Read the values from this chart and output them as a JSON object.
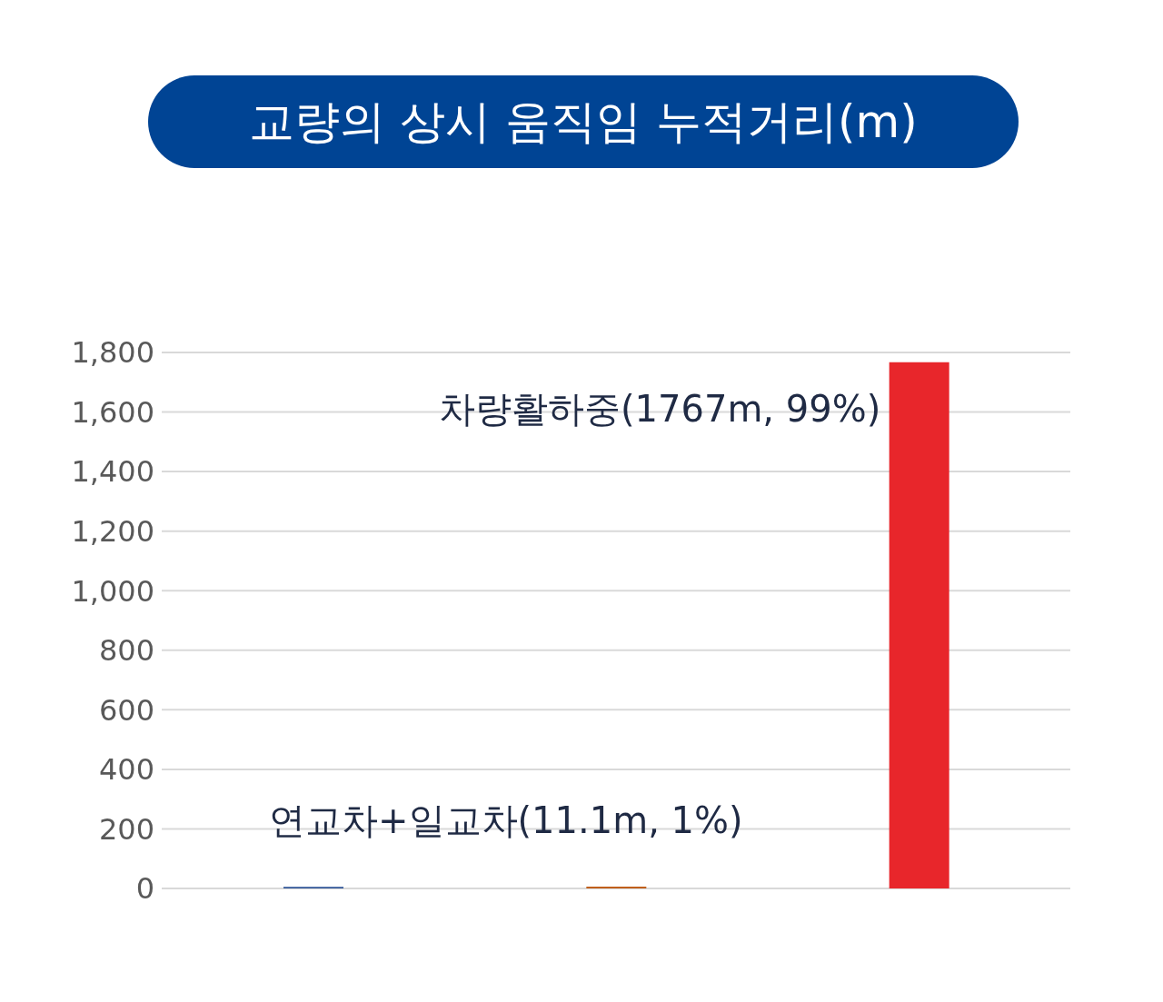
{
  "chart_data": {
    "type": "bar",
    "title": "교량의 상시 움직임 누적거리(m)",
    "categories": [
      null,
      null,
      null
    ],
    "values": [
      5,
      6,
      1767
    ],
    "colors": [
      "#2f5597",
      "#c0601c",
      "#e8262b"
    ],
    "ylim": [
      0,
      1800
    ],
    "yticks": [
      0,
      {
        "value": 200,
        "label": "200"
      },
      {
        "value": 400,
        "label": "400"
      },
      {
        "value": 600,
        "label": "600"
      },
      {
        "value": 800,
        "label": "800"
      },
      {
        "value": 1000,
        "label": "1,000"
      },
      {
        "value": 1200,
        "label": "1,200"
      },
      {
        "value": 1400,
        "label": "1,400"
      },
      {
        "value": 1600,
        "label": "1,600"
      },
      {
        "value": 1800,
        "label": "1,800"
      }
    ],
    "grid": "y",
    "tick_labels": "y",
    "legend": false,
    "annotations": [
      "차량활하중(1767m, 99%)",
      "연교차+일교차(11.1m, 1%)"
    ]
  }
}
